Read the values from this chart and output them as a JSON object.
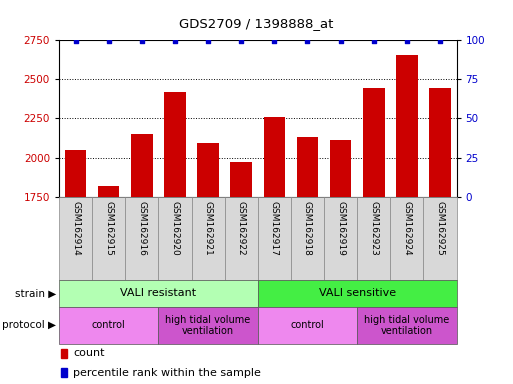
{
  "title": "GDS2709 / 1398888_at",
  "samples": [
    "GSM162914",
    "GSM162915",
    "GSM162916",
    "GSM162920",
    "GSM162921",
    "GSM162922",
    "GSM162917",
    "GSM162918",
    "GSM162919",
    "GSM162923",
    "GSM162924",
    "GSM162925"
  ],
  "bar_values": [
    2050,
    1820,
    2150,
    2420,
    2090,
    1970,
    2255,
    2130,
    2115,
    2440,
    2650,
    2440
  ],
  "percentile_values": [
    99,
    99,
    99,
    99,
    99,
    99,
    99,
    99,
    99,
    99,
    99,
    99
  ],
  "bar_color": "#cc0000",
  "percentile_color": "#0000cc",
  "ylim_left": [
    1750,
    2750
  ],
  "ylim_right": [
    0,
    100
  ],
  "yticks_left": [
    1750,
    2000,
    2250,
    2500,
    2750
  ],
  "yticks_right": [
    0,
    25,
    50,
    75,
    100
  ],
  "strain_groups": [
    {
      "label": "VALI resistant",
      "start": 0,
      "end": 6,
      "color": "#b3ffb3"
    },
    {
      "label": "VALI sensitive",
      "start": 6,
      "end": 12,
      "color": "#44ee44"
    }
  ],
  "protocol_groups": [
    {
      "label": "control",
      "start": 0,
      "end": 3,
      "color": "#ee88ee"
    },
    {
      "label": "high tidal volume\nventilation",
      "start": 3,
      "end": 6,
      "color": "#cc55cc"
    },
    {
      "label": "control",
      "start": 6,
      "end": 9,
      "color": "#ee88ee"
    },
    {
      "label": "high tidal volume\nventilation",
      "start": 9,
      "end": 12,
      "color": "#cc55cc"
    }
  ],
  "legend_count_color": "#cc0000",
  "legend_percentile_color": "#0000cc",
  "background_color": "#ffffff",
  "plot_bg_color": "#ffffff",
  "xlabels_bg": "#d8d8d8",
  "xlabels_border": "#888888"
}
